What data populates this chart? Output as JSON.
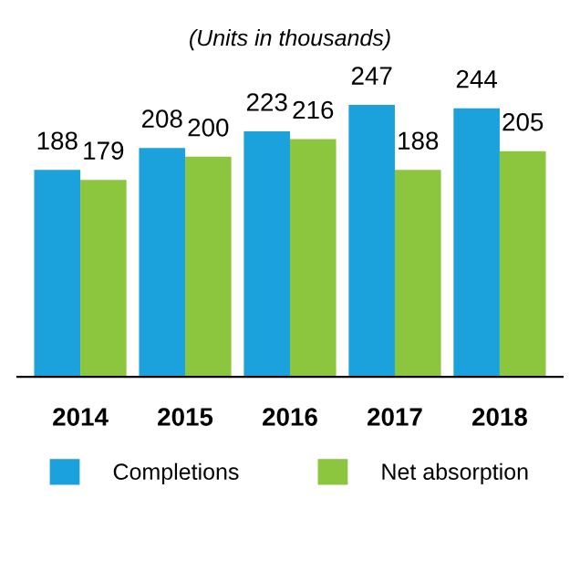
{
  "chart_data": {
    "type": "bar",
    "subtitle": "(Units in thousands)",
    "categories": [
      "2014",
      "2015",
      "2016",
      "2017",
      "2018"
    ],
    "series": [
      {
        "name": "Completions",
        "color": "#1ba1dc",
        "values": [
          188,
          208,
          223,
          247,
          244
        ]
      },
      {
        "name": "Net absorption",
        "color": "#8cc63f",
        "values": [
          179,
          200,
          216,
          188,
          205
        ]
      }
    ],
    "tick_labels": "x",
    "data_labels": true,
    "grid": false,
    "legend": "bottom"
  }
}
